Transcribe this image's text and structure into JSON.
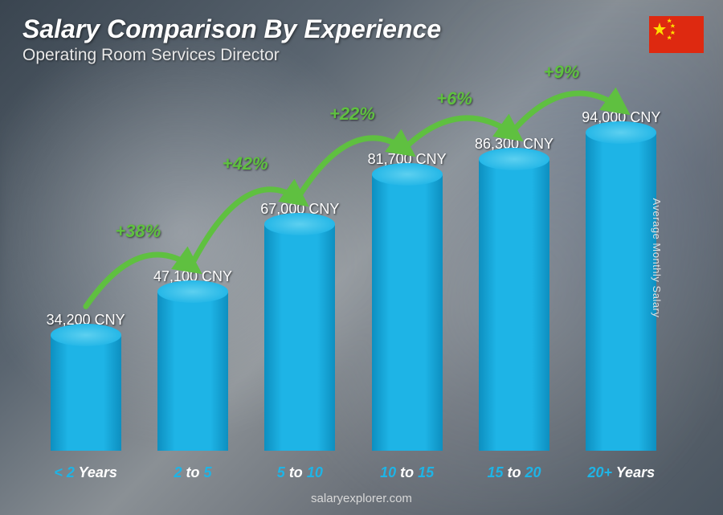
{
  "header": {
    "title": "Salary Comparison By Experience",
    "subtitle": "Operating Room Services Director"
  },
  "flag": {
    "name": "china-flag",
    "bg_color": "#de2910",
    "star_color": "#ffde00"
  },
  "yaxis_label": "Average Monthly Salary",
  "footer": "salaryexplorer.com",
  "chart": {
    "type": "bar",
    "max_value": 100000,
    "bar_fill": "#1eb4e6",
    "bar_fill_dark": "#0d8fc0",
    "bar_top": "#5dd0f0",
    "value_color": "#ffffff",
    "value_fontsize": 18,
    "xlabel_num_color": "#1eb4e6",
    "xlabel_word_color": "#ffffff",
    "xlabel_fontsize": 18,
    "arc_color": "#5fc040",
    "arc_stroke_width": 7,
    "pct_color": "#5fc040",
    "pct_fontsize": 22,
    "bars": [
      {
        "value": 34200,
        "value_label": "34,200 CNY",
        "xlabel_pre": "< 2",
        "xlabel_post": " Years"
      },
      {
        "value": 47100,
        "value_label": "47,100 CNY",
        "xlabel_pre": "2",
        "xlabel_mid": " to ",
        "xlabel_post": "5"
      },
      {
        "value": 67000,
        "value_label": "67,000 CNY",
        "xlabel_pre": "5",
        "xlabel_mid": " to ",
        "xlabel_post": "10"
      },
      {
        "value": 81700,
        "value_label": "81,700 CNY",
        "xlabel_pre": "10",
        "xlabel_mid": " to ",
        "xlabel_post": "15"
      },
      {
        "value": 86300,
        "value_label": "86,300 CNY",
        "xlabel_pre": "15",
        "xlabel_mid": " to ",
        "xlabel_post": "20"
      },
      {
        "value": 94000,
        "value_label": "94,000 CNY",
        "xlabel_pre": "20+",
        "xlabel_post": " Years"
      }
    ],
    "increases": [
      {
        "from": 0,
        "to": 1,
        "pct": "+38%"
      },
      {
        "from": 1,
        "to": 2,
        "pct": "+42%"
      },
      {
        "from": 2,
        "to": 3,
        "pct": "+22%"
      },
      {
        "from": 3,
        "to": 4,
        "pct": "+6%"
      },
      {
        "from": 4,
        "to": 5,
        "pct": "+9%"
      }
    ]
  }
}
